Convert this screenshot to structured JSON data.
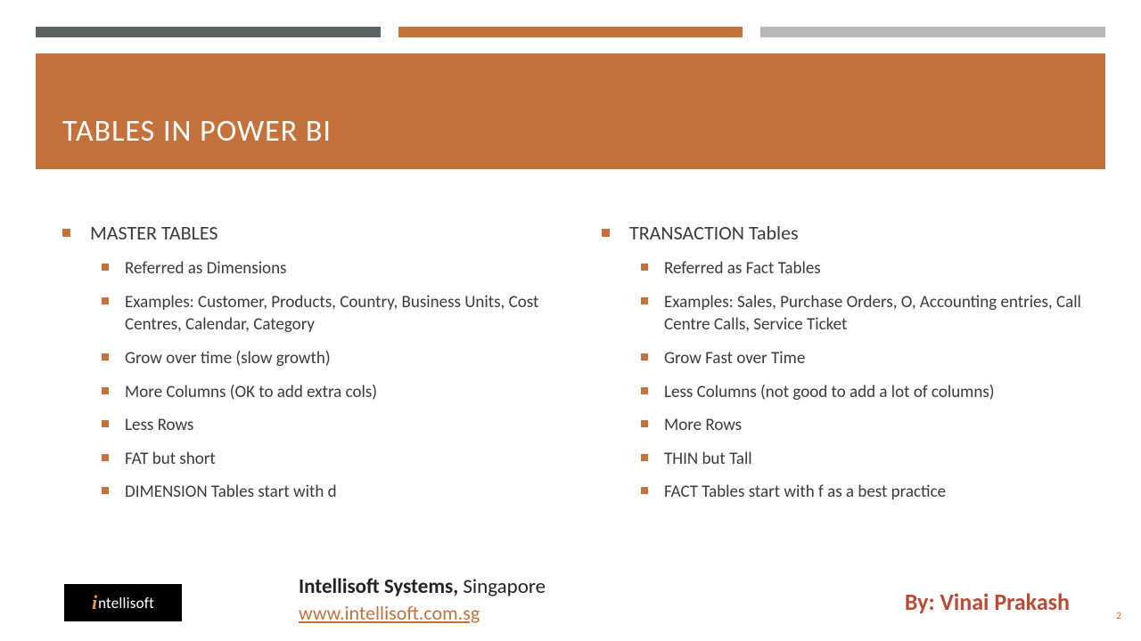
{
  "topbars": {
    "colors": [
      "#5b6266",
      "#c4713c",
      "#b7b7b7"
    ]
  },
  "title": "TABLES IN POWER BI",
  "title_band_color": "#c4713c",
  "bullet_color": "#c4713c",
  "columns": [
    {
      "heading": "MASTER TABLES",
      "items": [
        "Referred as Dimensions",
        "Examples: Customer, Products, Country, Business Units, Cost Centres, Calendar, Category",
        "Grow over time (slow growth)",
        "More Columns (OK to add extra cols)",
        "Less Rows",
        "FAT but short",
        "DIMENSION Tables start with d"
      ]
    },
    {
      "heading": "TRANSACTION Tables",
      "items": [
        "Referred as Fact Tables",
        "Examples: Sales, Purchase Orders, O, Accounting entries, Call Centre Calls, Service Ticket",
        "Grow Fast over Time",
        "Less Columns (not good to add a lot of columns)",
        "More Rows",
        "THIN but Tall",
        "FACT Tables start with f as a best practice"
      ]
    }
  ],
  "footer": {
    "logo_i": "i",
    "logo_rest": "ntellisoft",
    "company_bold": "Intellisoft Systems,",
    "company_rest": " Singapore",
    "url": "www.intellisoft.com.sg",
    "byline": "By: Vinai Prakash",
    "page": "2"
  }
}
